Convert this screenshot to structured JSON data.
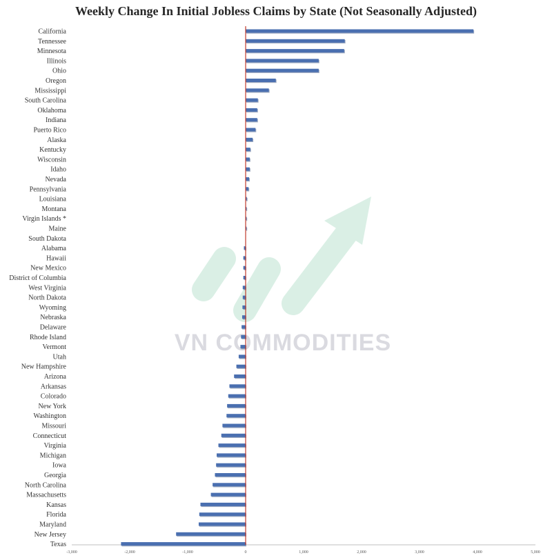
{
  "chart_data": {
    "type": "bar",
    "orientation": "horizontal",
    "title": "Weekly Change In Initial Jobless Claims by State (Not Seasonally Adjusted)",
    "xlim": [
      -3000,
      5000
    ],
    "x_ticks": [
      -3000,
      -2000,
      -1000,
      0,
      1000,
      2000,
      3000,
      4000,
      5000
    ],
    "x_tick_labels": [
      "-3,000",
      "-2,000",
      "-1,000",
      "0",
      "1,000",
      "2,000",
      "3,000",
      "4,000",
      "5,000"
    ],
    "grid": false,
    "categories": [
      "California",
      "Tennessee",
      "Minnesota",
      "Illinois",
      "Ohio",
      "Oregon",
      "Mississippi",
      "South Carolina",
      "Oklahoma",
      "Indiana",
      "Puerto Rico",
      "Alaska",
      "Kentucky",
      "Wisconsin",
      "Idaho",
      "Nevada",
      "Pennsylvania",
      "Louisiana",
      "Montana",
      "Virgin Islands *",
      "Maine",
      "South Dakota",
      "Alabama",
      "Hawaii",
      "New Mexico",
      "District of Columbia",
      "West Virginia",
      "North Dakota",
      "Wyoming",
      "Nebraska",
      "Delaware",
      "Rhode Island",
      "Vermont",
      "Utah",
      "New Hampshire",
      "Arizona",
      "Arkansas",
      "Colorado",
      "New York",
      "Washington",
      "Missouri",
      "Connecticut",
      "Virginia",
      "Michigan",
      "Iowa",
      "Georgia",
      "North Carolina",
      "Massachusetts",
      "Kansas",
      "Florida",
      "Maryland",
      "New Jersey",
      "Texas"
    ],
    "values": [
      3930,
      1710,
      1700,
      1260,
      1260,
      520,
      400,
      210,
      200,
      200,
      170,
      120,
      80,
      70,
      70,
      60,
      50,
      20,
      5,
      3,
      2,
      0,
      -30,
      -40,
      -40,
      -40,
      -50,
      -50,
      -55,
      -60,
      -70,
      -80,
      -90,
      -120,
      -160,
      -200,
      -280,
      -300,
      -320,
      -330,
      -400,
      -420,
      -470,
      -500,
      -510,
      -530,
      -570,
      -600,
      -780,
      -800,
      -810,
      -1200,
      -2150
    ],
    "colors": {
      "bar": "#4a6fb0",
      "bar_shadow": "#2c4678",
      "zero_line": "#c0392b",
      "axis": "#bfbfbf"
    }
  },
  "watermark": {
    "text": "VN COMMODITIES",
    "color": "#7ec8a6"
  }
}
